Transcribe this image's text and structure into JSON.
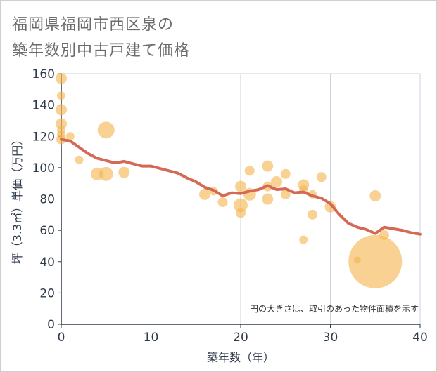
{
  "title_lines": [
    "福岡県福岡市西区泉の",
    "築年数別中古戸建て価格"
  ],
  "colors": {
    "bubble": "#f4b450",
    "line": "#d46a56",
    "grid": "#c9d3e0",
    "axis": "#2f3a4a",
    "background": "#ffffff"
  },
  "chart_data": {
    "type": "scatter",
    "title": "福岡県福岡市西区泉の築年数別中古戸建て価格",
    "xlabel": "築年数（年）",
    "ylabel": "坪（3.3㎡）単価（万円）",
    "xlim": [
      0,
      40
    ],
    "ylim": [
      0,
      160
    ],
    "xticks": [
      0,
      10,
      20,
      30,
      40
    ],
    "yticks": [
      0,
      20,
      40,
      60,
      80,
      100,
      120,
      140,
      160
    ],
    "grid": true,
    "note": "円の大きさは、取引のあった物件面積を示す",
    "bubbles": [
      {
        "x": 0,
        "y": 157,
        "s": 8
      },
      {
        "x": 0,
        "y": 146,
        "s": 6
      },
      {
        "x": 0,
        "y": 137,
        "s": 8
      },
      {
        "x": 0,
        "y": 128,
        "s": 8
      },
      {
        "x": 0,
        "y": 124,
        "s": 6
      },
      {
        "x": 0,
        "y": 121,
        "s": 6
      },
      {
        "x": 0,
        "y": 118,
        "s": 7
      },
      {
        "x": 1,
        "y": 120,
        "s": 6
      },
      {
        "x": 2,
        "y": 105,
        "s": 6
      },
      {
        "x": 4,
        "y": 96,
        "s": 9
      },
      {
        "x": 5,
        "y": 124,
        "s": 12
      },
      {
        "x": 5,
        "y": 96,
        "s": 10
      },
      {
        "x": 7,
        "y": 97,
        "s": 8
      },
      {
        "x": 16,
        "y": 83,
        "s": 8
      },
      {
        "x": 17,
        "y": 85,
        "s": 6
      },
      {
        "x": 18,
        "y": 78,
        "s": 7
      },
      {
        "x": 20,
        "y": 88,
        "s": 8
      },
      {
        "x": 20,
        "y": 76,
        "s": 10
      },
      {
        "x": 20,
        "y": 71,
        "s": 7
      },
      {
        "x": 21,
        "y": 98,
        "s": 7
      },
      {
        "x": 21,
        "y": 83,
        "s": 9
      },
      {
        "x": 23,
        "y": 101,
        "s": 8
      },
      {
        "x": 23,
        "y": 88,
        "s": 7
      },
      {
        "x": 23,
        "y": 80,
        "s": 8
      },
      {
        "x": 24,
        "y": 91,
        "s": 8
      },
      {
        "x": 25,
        "y": 96,
        "s": 7
      },
      {
        "x": 25,
        "y": 83,
        "s": 7
      },
      {
        "x": 27,
        "y": 89,
        "s": 8
      },
      {
        "x": 27,
        "y": 86,
        "s": 6
      },
      {
        "x": 27,
        "y": 54,
        "s": 6
      },
      {
        "x": 28,
        "y": 83,
        "s": 6
      },
      {
        "x": 28,
        "y": 70,
        "s": 7
      },
      {
        "x": 29,
        "y": 94,
        "s": 7
      },
      {
        "x": 30,
        "y": 75,
        "s": 8
      },
      {
        "x": 33,
        "y": 41,
        "s": 5
      },
      {
        "x": 35,
        "y": 82,
        "s": 8
      },
      {
        "x": 35,
        "y": 40,
        "s": 38
      },
      {
        "x": 36,
        "y": 57,
        "s": 7
      }
    ],
    "trend": {
      "x": [
        0,
        1,
        2,
        3,
        4,
        5,
        6,
        7,
        8,
        9,
        10,
        11,
        12,
        13,
        14,
        15,
        16,
        17,
        18,
        19,
        20,
        21,
        22,
        23,
        24,
        25,
        26,
        27,
        28,
        29,
        30,
        31,
        32,
        33,
        34,
        35,
        36,
        37,
        38,
        39,
        40
      ],
      "y": [
        118,
        117,
        113,
        109,
        106,
        104.5,
        103,
        104,
        102.5,
        101,
        101,
        99.5,
        98,
        96.5,
        93.5,
        91,
        87.5,
        85.5,
        82,
        84,
        83.5,
        85,
        86,
        88.5,
        86,
        86.5,
        84,
        84.5,
        82,
        80.5,
        77,
        70,
        64.5,
        62,
        60.5,
        58,
        62,
        61,
        60,
        58.5,
        57.5
      ]
    }
  }
}
